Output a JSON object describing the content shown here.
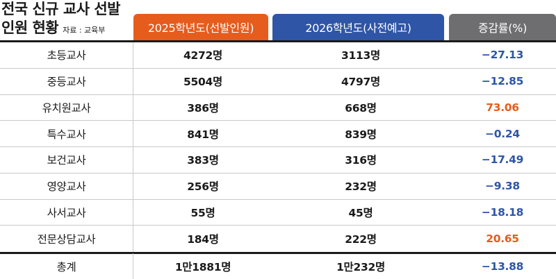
{
  "title": {
    "line1": "전국 신규 교사 선발",
    "line2": "인원 현황",
    "source": "자료 : 교육부"
  },
  "headers": {
    "col2025": "2025학년도(선발인원)",
    "col2026": "2026학년도(사전예고)",
    "rate": "증감률(%)"
  },
  "colors": {
    "orange": "#e65c1c",
    "blue": "#2f55a6",
    "gray": "#6e6e70"
  },
  "rows": [
    {
      "category": "초등교사",
      "y2025": "4272명",
      "y2026": "3113명",
      "rate": "−27.13"
    },
    {
      "category": "중등교사",
      "y2025": "5504명",
      "y2026": "4797명",
      "rate": "−12.85"
    },
    {
      "category": "유치원교사",
      "y2025": "386명",
      "y2026": "668명",
      "rate": "73.06"
    },
    {
      "category": "특수교사",
      "y2025": "841명",
      "y2026": "839명",
      "rate": "−0.24"
    },
    {
      "category": "보건교사",
      "y2025": "383명",
      "y2026": "316명",
      "rate": "−17.49"
    },
    {
      "category": "영양교사",
      "y2025": "256명",
      "y2026": "232명",
      "rate": "−9.38"
    },
    {
      "category": "사서교사",
      "y2025": "55명",
      "y2026": "45명",
      "rate": "−18.18"
    },
    {
      "category": "전문상담교사",
      "y2025": "184명",
      "y2026": "222명",
      "rate": "20.65"
    }
  ],
  "total": {
    "category": "총계",
    "y2025": "1만1881명",
    "y2026": "1만232명",
    "rate": "−13.88"
  }
}
